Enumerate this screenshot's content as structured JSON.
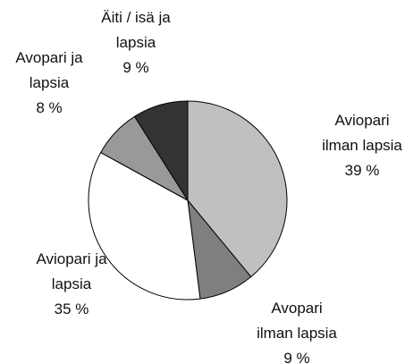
{
  "chart_data": {
    "type": "pie",
    "categories": [
      "Aviopari ilman lapsia",
      "Avopari ilman lapsia",
      "Aviopari ja lapsia",
      "Avopari ja lapsia",
      "Äiti / isä ja lapsia"
    ],
    "values": [
      39,
      9,
      35,
      8,
      9
    ],
    "value_labels": [
      "39 %",
      "9 %",
      "35 %",
      "8 %",
      "9 %"
    ],
    "colors": [
      "#c0c0c0",
      "#7f7f7f",
      "#ffffff",
      "#999999",
      "#333333"
    ]
  }
}
